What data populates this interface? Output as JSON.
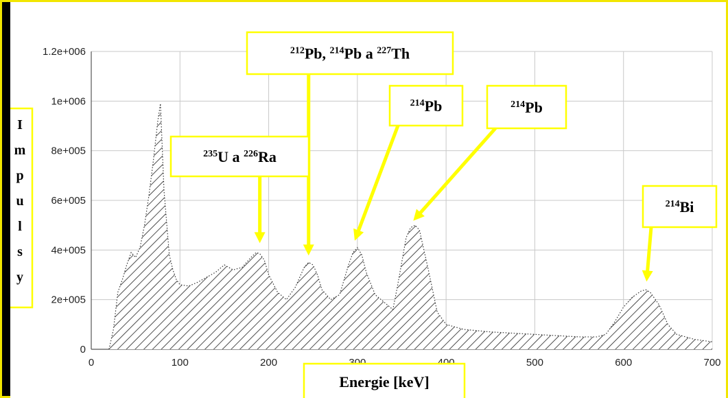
{
  "chart_data": {
    "type": "area",
    "title": "",
    "xlabel": "Energie [keV]",
    "ylabel": "Impulsy",
    "xlim": [
      0,
      700
    ],
    "ylim": [
      0,
      1200000
    ],
    "x_ticks": [
      "0",
      "100",
      "200",
      "300",
      "400",
      "500",
      "600",
      "700"
    ],
    "y_ticks": [
      "0",
      "2e+005",
      "4e+005",
      "6e+005",
      "8e+005",
      "1e+006",
      "1.2e+006"
    ],
    "grid": true,
    "fill_pattern": "diagonal-hatch",
    "spectrum": {
      "x": [
        20,
        25,
        30,
        35,
        40,
        45,
        50,
        55,
        60,
        65,
        70,
        75,
        78,
        82,
        88,
        92,
        96,
        100,
        110,
        120,
        130,
        140,
        150,
        160,
        170,
        180,
        186,
        190,
        195,
        200,
        210,
        220,
        230,
        240,
        245,
        250,
        255,
        260,
        270,
        280,
        290,
        295,
        300,
        305,
        310,
        320,
        330,
        340,
        345,
        350,
        355,
        360,
        365,
        370,
        380,
        390,
        400,
        420,
        450,
        500,
        550,
        570,
        580,
        590,
        600,
        610,
        620,
        625,
        630,
        640,
        650,
        660,
        680,
        700
      ],
      "y": [
        0,
        80000,
        230000,
        280000,
        340000,
        390000,
        370000,
        410000,
        500000,
        620000,
        760000,
        920000,
        990000,
        640000,
        380000,
        320000,
        280000,
        260000,
        255000,
        270000,
        290000,
        310000,
        340000,
        320000,
        330000,
        370000,
        390000,
        385000,
        360000,
        300000,
        230000,
        200000,
        250000,
        330000,
        350000,
        340000,
        300000,
        240000,
        200000,
        220000,
        340000,
        390000,
        410000,
        380000,
        310000,
        220000,
        190000,
        160000,
        250000,
        350000,
        450000,
        490000,
        500000,
        480000,
        320000,
        150000,
        100000,
        80000,
        70000,
        60000,
        50000,
        50000,
        60000,
        110000,
        170000,
        210000,
        235000,
        240000,
        230000,
        180000,
        100000,
        60000,
        40000,
        30000
      ]
    },
    "annotations": [
      {
        "id": "u-ra",
        "parts": [
          {
            "sup": "235"
          },
          {
            "t": "U a "
          },
          {
            "sup": "226"
          },
          {
            "t": "Ra"
          }
        ],
        "points_to": {
          "x": 190,
          "y": 400000
        }
      },
      {
        "id": "pb-pb-th",
        "parts": [
          {
            "sup": "212"
          },
          {
            "t": "Pb, "
          },
          {
            "sup": "214"
          },
          {
            "t": "Pb a "
          },
          {
            "sup": "227"
          },
          {
            "t": "Th"
          }
        ],
        "points_to": {
          "x": 245,
          "y": 350000
        }
      },
      {
        "id": "pb-295",
        "parts": [
          {
            "sup": "214"
          },
          {
            "t": "Pb"
          }
        ],
        "points_to": {
          "x": 297,
          "y": 410000
        }
      },
      {
        "id": "pb-352",
        "parts": [
          {
            "sup": "214"
          },
          {
            "t": "Pb"
          }
        ],
        "points_to": {
          "x": 363,
          "y": 490000
        }
      },
      {
        "id": "bi-609",
        "parts": [
          {
            "sup": "214"
          },
          {
            "t": "Bi"
          }
        ],
        "points_to": {
          "x": 626,
          "y": 245000
        }
      }
    ]
  },
  "colors": {
    "frame": "#f2e600",
    "label_box": "#ffff00",
    "arrow": "#ffff00",
    "background": "#ffffff",
    "grid": "#c8c8c8",
    "hatch": "#222222"
  }
}
